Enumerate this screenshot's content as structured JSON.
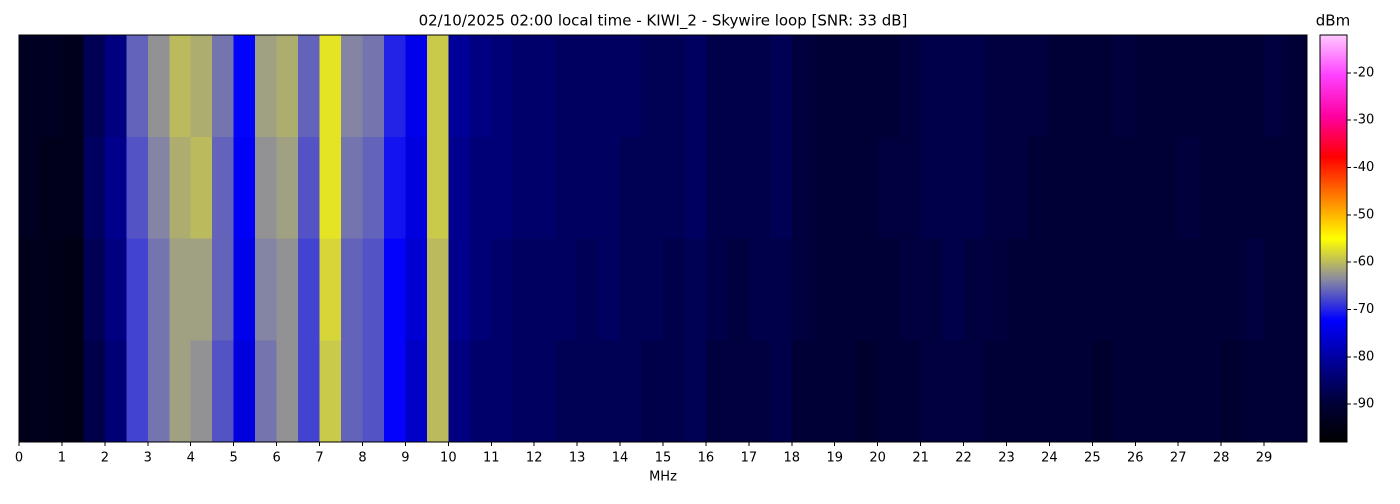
{
  "chart_data": {
    "type": "heatmap",
    "title": "02/10/2025 02:00 local time - KIWI_2 - Skywire loop [SNR: 33 dB]",
    "xlabel": "MHz",
    "colorbar_label": "dBm",
    "xlim": [
      0,
      30
    ],
    "xticks": [
      0,
      1,
      2,
      3,
      4,
      5,
      6,
      7,
      8,
      9,
      10,
      11,
      12,
      13,
      14,
      15,
      16,
      17,
      18,
      19,
      20,
      21,
      22,
      23,
      24,
      25,
      26,
      27,
      28,
      29
    ],
    "xbins": [
      0,
      0.5,
      1,
      1.5,
      2,
      2.5,
      3,
      3.5,
      4,
      4.5,
      5,
      5.5,
      6,
      6.5,
      7,
      7.5,
      8,
      8.5,
      9,
      9.5,
      10,
      10.5,
      11,
      11.5,
      12,
      12.5,
      13,
      13.5,
      14,
      14.5,
      15,
      15.5,
      16,
      16.5,
      17,
      17.5,
      18,
      18.5,
      19,
      19.5,
      20,
      20.5,
      21,
      21.5,
      22,
      22.5,
      23,
      23.5,
      24,
      24.5,
      25,
      25.5,
      26,
      26.5,
      27,
      27.5,
      28,
      28.5,
      29,
      29.5,
      30
    ],
    "z": [
      [
        -93,
        -93,
        -94,
        -87,
        -83,
        -66,
        -63,
        -60,
        -61,
        -65,
        -72,
        -62,
        -61,
        -66,
        -57,
        -64,
        -65,
        -70,
        -74,
        -59,
        -81,
        -83,
        -84,
        -85,
        -85,
        -86,
        -86,
        -86,
        -86,
        -87,
        -87,
        -86,
        -88,
        -88,
        -88,
        -87,
        -89,
        -90,
        -90,
        -90,
        -90,
        -89,
        -88,
        -88,
        -88,
        -89,
        -89,
        -89,
        -90,
        -90,
        -90,
        -89,
        -90,
        -90,
        -90,
        -90,
        -90,
        -90,
        -89,
        -90
      ],
      [
        -93,
        -94,
        -94,
        -86,
        -82,
        -67,
        -64,
        -61,
        -60,
        -66,
        -73,
        -63,
        -62,
        -67,
        -57,
        -65,
        -66,
        -71,
        -75,
        -59,
        -82,
        -84,
        -84,
        -85,
        -85,
        -86,
        -86,
        -86,
        -87,
        -87,
        -87,
        -86,
        -88,
        -88,
        -88,
        -87,
        -89,
        -90,
        -90,
        -90,
        -89,
        -89,
        -88,
        -88,
        -88,
        -89,
        -89,
        -90,
        -90,
        -90,
        -90,
        -90,
        -90,
        -90,
        -89,
        -90,
        -90,
        -90,
        -90,
        -90
      ],
      [
        -94,
        -94,
        -95,
        -87,
        -83,
        -68,
        -65,
        -62,
        -62,
        -66,
        -74,
        -64,
        -63,
        -68,
        -58,
        -66,
        -67,
        -72,
        -76,
        -60,
        -82,
        -84,
        -85,
        -86,
        -86,
        -86,
        -87,
        -86,
        -87,
        -87,
        -88,
        -87,
        -88,
        -89,
        -88,
        -88,
        -89,
        -90,
        -90,
        -90,
        -90,
        -89,
        -89,
        -88,
        -89,
        -89,
        -90,
        -90,
        -90,
        -90,
        -90,
        -90,
        -90,
        -90,
        -90,
        -90,
        -90,
        -89,
        -90,
        -90
      ],
      [
        -94,
        -94,
        -95,
        -88,
        -84,
        -68,
        -65,
        -62,
        -63,
        -67,
        -75,
        -65,
        -63,
        -68,
        -59,
        -66,
        -67,
        -72,
        -77,
        -60,
        -83,
        -85,
        -85,
        -86,
        -86,
        -87,
        -87,
        -87,
        -87,
        -88,
        -88,
        -87,
        -89,
        -89,
        -89,
        -88,
        -90,
        -90,
        -90,
        -91,
        -90,
        -90,
        -89,
        -89,
        -89,
        -90,
        -90,
        -90,
        -90,
        -90,
        -91,
        -90,
        -90,
        -90,
        -90,
        -90,
        -91,
        -90,
        -90,
        -90
      ]
    ],
    "clim": [
      -98,
      -12
    ],
    "cbar_ticks": [
      -90,
      -80,
      -70,
      -60,
      -50,
      -40,
      -30,
      -20
    ],
    "colormap": [
      "#000000",
      "#00003a",
      "#00009a",
      "#0000ff",
      "#8a8aa0",
      "#ffff00",
      "#ff8000",
      "#ff0000",
      "#ff00a0",
      "#ff40ff",
      "#ffc8ff"
    ]
  }
}
